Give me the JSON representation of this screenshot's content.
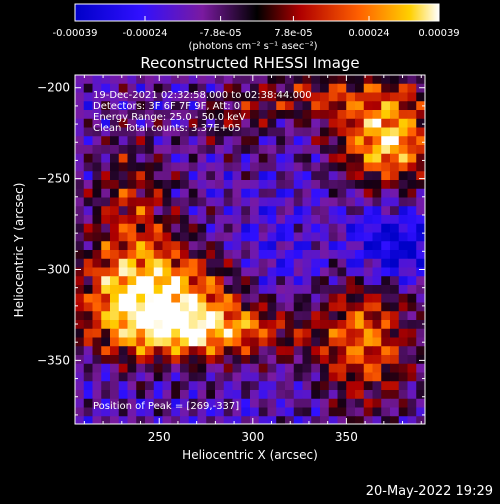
{
  "colorbar": {
    "tick_labels": [
      "-0.00039",
      "-0.00024",
      "-7.8e-05",
      "7.8e-05",
      "0.00024",
      "0.00039"
    ],
    "unit_label": "(photons cm⁻² s⁻¹ asec⁻²)",
    "range": [
      -0.00039,
      0.00039
    ],
    "colormap": "rhessi-blue-to-hot"
  },
  "plot": {
    "title": "Reconstructed RHESSI Image",
    "xlabel": "Heliocentric X (arcsec)",
    "ylabel": "Heliocentric Y (arcsec)",
    "x_ticks": [
      "250",
      "300",
      "350"
    ],
    "y_ticks": [
      "-200",
      "-250",
      "-300",
      "-350"
    ],
    "xlim": [
      205,
      392
    ],
    "ylim": [
      -385,
      -193
    ],
    "info_lines": [
      "19-Dec-2021 02:32:58.000 to 02:38:44.000",
      "Detectors: 3F 6F 7F 9F, Att: 0",
      "Energy Range: 25.0 - 50.0 keV",
      "Clean    Total counts: 3.37E+05"
    ],
    "peak_label": "Position of Peak = [269,-337]"
  },
  "footer": {
    "timestamp": "20-May-2022 19:29"
  },
  "colors": {
    "background": "#000000",
    "text": "#ffffff",
    "cold": "#2a10e0",
    "warm": "#ff6a00"
  }
}
